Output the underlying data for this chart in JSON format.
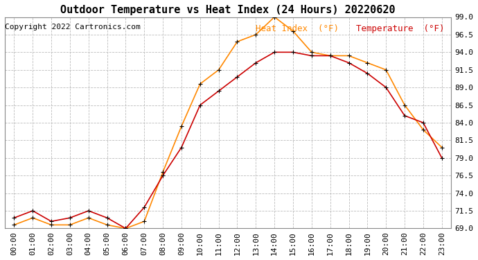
{
  "title": "Outdoor Temperature vs Heat Index (24 Hours) 20220620",
  "copyright": "Copyright 2022 Cartronics.com",
  "legend_heat_index": "Heat Index  (°F)",
  "legend_temperature": "Temperature  (°F)",
  "hours": [
    "00:00",
    "01:00",
    "02:00",
    "03:00",
    "04:00",
    "05:00",
    "06:00",
    "07:00",
    "08:00",
    "09:00",
    "10:00",
    "11:00",
    "12:00",
    "13:00",
    "14:00",
    "15:00",
    "16:00",
    "17:00",
    "18:00",
    "19:00",
    "20:00",
    "21:00",
    "22:00",
    "23:00"
  ],
  "temperature": [
    70.5,
    71.5,
    70.0,
    70.5,
    71.5,
    70.5,
    69.0,
    72.0,
    76.5,
    80.5,
    86.5,
    88.5,
    90.5,
    92.5,
    94.0,
    94.0,
    93.5,
    93.5,
    92.5,
    91.0,
    89.0,
    85.0,
    84.0,
    79.0
  ],
  "heat_index": [
    69.5,
    70.5,
    69.5,
    69.5,
    70.5,
    69.5,
    69.0,
    70.0,
    77.0,
    83.5,
    89.5,
    91.5,
    95.5,
    96.5,
    99.0,
    97.0,
    94.0,
    93.5,
    93.5,
    92.5,
    91.5,
    86.5,
    83.0,
    80.5
  ],
  "color_temperature": "#cc0000",
  "color_heat_index": "#ff8800",
  "color_grid": "#bbbbbb",
  "background_color": "#ffffff",
  "ylim_min": 69.0,
  "ylim_max": 99.0,
  "ytick_values": [
    69.0,
    71.5,
    74.0,
    76.5,
    79.0,
    81.5,
    84.0,
    86.5,
    89.0,
    91.5,
    94.0,
    96.5,
    99.0
  ],
  "title_fontsize": 11,
  "copyright_fontsize": 8,
  "legend_fontsize": 9,
  "tick_fontsize": 8,
  "marker": "+"
}
